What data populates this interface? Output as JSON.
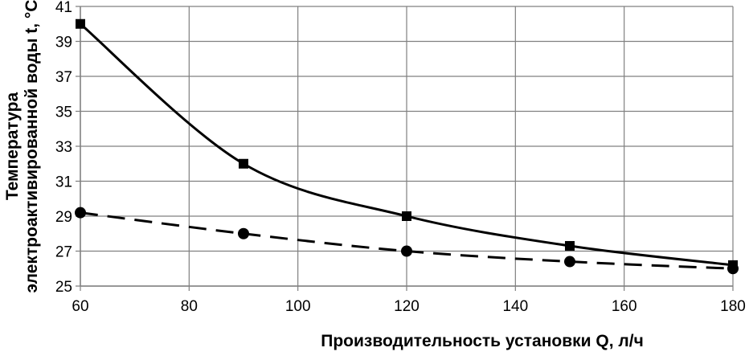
{
  "chart_data": {
    "type": "line",
    "title": "",
    "xlabel": "Производительность установки Q, л/ч",
    "ylabel_line1": "Температура",
    "ylabel_line2": "электроактивированной воды t, °С",
    "xlim": [
      60,
      180
    ],
    "ylim": [
      25,
      41
    ],
    "xticks": [
      60,
      80,
      100,
      120,
      140,
      160,
      180
    ],
    "yticks": [
      25,
      27,
      29,
      31,
      33,
      35,
      37,
      39,
      41
    ],
    "grid": true,
    "series": [
      {
        "marker": "square",
        "line": "solid",
        "color": "#000000",
        "x": [
          60,
          90,
          120,
          150,
          180
        ],
        "y": [
          40,
          32,
          29,
          27.3,
          26.2
        ]
      },
      {
        "marker": "circle",
        "line": "dashed",
        "color": "#000000",
        "x": [
          60,
          90,
          120,
          150,
          180
        ],
        "y": [
          29.2,
          28,
          27,
          26.4,
          26.0
        ]
      }
    ]
  }
}
